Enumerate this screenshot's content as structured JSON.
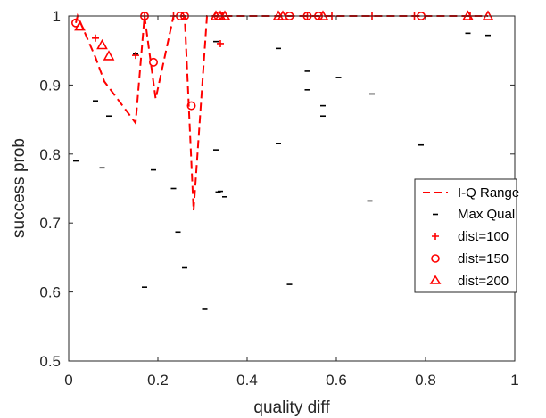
{
  "colors": {
    "red": "#ff0000",
    "black": "#000000",
    "axis": "#262626"
  },
  "chart_data": {
    "type": "scatter",
    "title": "",
    "xlabel": "quality diff",
    "ylabel": "success prob",
    "xlim": [
      0,
      1
    ],
    "ylim": [
      0.5,
      1
    ],
    "xticks": [
      0,
      0.2,
      0.4,
      0.6,
      0.8,
      1
    ],
    "xtick_labels": [
      "0",
      "0.2",
      "0.4",
      "0.6",
      "0.8",
      "1"
    ],
    "yticks": [
      0.5,
      0.6,
      0.7,
      0.8,
      0.9,
      1
    ],
    "ytick_labels": [
      "0.5",
      "0.6",
      "0.7",
      "0.8",
      "0.9",
      "1"
    ],
    "grid": false,
    "legend_position": "right",
    "series": [
      {
        "name": "I-Q Range",
        "style": "dashed-line",
        "color": "#ff0000",
        "points": [
          [
            0.016,
            0.99
          ],
          [
            0.02,
            1.0
          ],
          [
            0.06,
            0.94
          ],
          [
            0.08,
            0.905
          ],
          [
            0.15,
            0.845
          ],
          [
            0.17,
            1.0
          ],
          [
            0.195,
            0.88
          ],
          [
            0.235,
            1.0
          ],
          [
            0.26,
            1.0
          ],
          [
            0.28,
            0.718
          ],
          [
            0.31,
            1.0
          ],
          [
            0.33,
            1.0
          ],
          [
            0.94,
            1.0
          ]
        ]
      },
      {
        "name": "Max Qual",
        "style": "hline-marker",
        "color": "#000000",
        "points": [
          [
            0.016,
            0.79
          ],
          [
            0.06,
            0.877
          ],
          [
            0.075,
            0.78
          ],
          [
            0.09,
            0.855
          ],
          [
            0.15,
            0.945
          ],
          [
            0.17,
            0.607
          ],
          [
            0.19,
            0.777
          ],
          [
            0.235,
            0.75
          ],
          [
            0.245,
            0.687
          ],
          [
            0.26,
            0.635
          ],
          [
            0.305,
            0.575
          ],
          [
            0.33,
            0.963
          ],
          [
            0.33,
            0.806
          ],
          [
            0.335,
            0.745
          ],
          [
            0.34,
            0.746
          ],
          [
            0.35,
            0.738
          ],
          [
            0.47,
            0.953
          ],
          [
            0.47,
            0.815
          ],
          [
            0.535,
            0.92
          ],
          [
            0.535,
            0.893
          ],
          [
            0.495,
            0.611
          ],
          [
            0.57,
            0.87
          ],
          [
            0.57,
            0.855
          ],
          [
            0.605,
            0.911
          ],
          [
            0.68,
            0.887
          ],
          [
            0.675,
            0.732
          ],
          [
            0.79,
            0.813
          ],
          [
            0.895,
            0.975
          ],
          [
            0.94,
            0.972
          ]
        ]
      },
      {
        "name": "dist=100",
        "style": "plus-marker",
        "color": "#ff0000",
        "points": [
          [
            0.06,
            0.968
          ],
          [
            0.15,
            0.943
          ],
          [
            0.17,
            1.0
          ],
          [
            0.235,
            1.0
          ],
          [
            0.34,
            0.96
          ],
          [
            0.345,
            1.0
          ],
          [
            0.535,
            1.0
          ],
          [
            0.59,
            1.0
          ],
          [
            0.68,
            1.0
          ],
          [
            0.775,
            1.0
          ],
          [
            0.9,
            1.0
          ]
        ]
      },
      {
        "name": "dist=150",
        "style": "circle-marker",
        "color": "#ff0000",
        "points": [
          [
            0.016,
            0.99
          ],
          [
            0.17,
            1.0
          ],
          [
            0.19,
            0.933
          ],
          [
            0.25,
            1.0
          ],
          [
            0.26,
            1.0
          ],
          [
            0.275,
            0.87
          ],
          [
            0.335,
            1.0
          ],
          [
            0.495,
            1.0
          ],
          [
            0.535,
            1.0
          ],
          [
            0.56,
            1.0
          ],
          [
            0.79,
            1.0
          ]
        ]
      },
      {
        "name": "dist=200",
        "style": "triangle-marker",
        "color": "#ff0000",
        "points": [
          [
            0.025,
            0.985
          ],
          [
            0.075,
            0.958
          ],
          [
            0.09,
            0.942
          ],
          [
            0.33,
            1.0
          ],
          [
            0.34,
            1.0
          ],
          [
            0.35,
            1.0
          ],
          [
            0.47,
            1.0
          ],
          [
            0.48,
            1.0
          ],
          [
            0.57,
            1.0
          ],
          [
            0.895,
            1.0
          ],
          [
            0.94,
            1.0
          ]
        ]
      }
    ]
  }
}
